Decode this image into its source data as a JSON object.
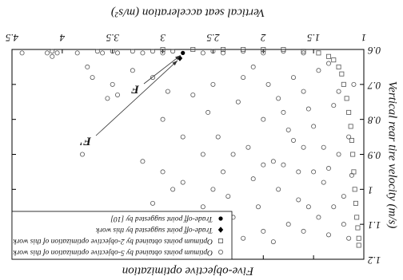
{
  "chart_data": {
    "type": "scatter",
    "title": "Five-objective optimization",
    "x_label": "Vertical seat acceleration (m/s²)",
    "y_label": "Vertical rear tire velocity (m/s)",
    "xlim": [
      1,
      4.5
    ],
    "xticks": [
      1,
      1.5,
      2,
      2.5,
      3,
      3.5,
      4,
      4.5
    ],
    "ylim": [
      0.6,
      1.2
    ],
    "yticks": [
      0.6,
      0.7,
      0.8,
      0.9,
      1,
      1.1,
      1.2
    ],
    "legend": "upper right",
    "rotated": 180,
    "series": [
      {
        "name": "Optimum points obtained by 5-objective optimization of this work",
        "marker": "circle",
        "color": "#555",
        "x": [
          4.4,
          4.15,
          4.1,
          4.05,
          3.85,
          3.65,
          3.6,
          3.5,
          3.45,
          3.3,
          3.2,
          3.1,
          3.0,
          2.9,
          2.6,
          2.5,
          2.4,
          2.2,
          2.0,
          1.8,
          1.6,
          4.1,
          3.75,
          3.7,
          3.5,
          3.45,
          3.3,
          3.1,
          3.55,
          2.95,
          3.0,
          3.8,
          3.2,
          3.0,
          2.9,
          3.1,
          2.7,
          2.8,
          2.6,
          2.55,
          2.5,
          2.45,
          2.4,
          2.35,
          2.3,
          2.25,
          2.2,
          2.15,
          2.1,
          2.05,
          2.0,
          2.0,
          1.95,
          1.9,
          1.85,
          1.8,
          1.75,
          1.7,
          1.65,
          1.6,
          1.55,
          1.5,
          1.45,
          1.4,
          1.35,
          1.3,
          1.25,
          1.2,
          1.15,
          1.1,
          1.12,
          1.3,
          1.5,
          1.7,
          1.9,
          2.2,
          2.6,
          2.1,
          1.6,
          1.4,
          1.25,
          1.8,
          2.3,
          2.7,
          1.35,
          1.55,
          1.75,
          2.0,
          1.2,
          1.45,
          1.65,
          1.85,
          2.4,
          2.8,
          1.15,
          1.35,
          1.6,
          2.5
        ],
        "y": [
          0.61,
          0.61,
          0.605,
          0.61,
          0.61,
          0.605,
          0.61,
          0.605,
          0.61,
          0.605,
          0.61,
          0.605,
          0.61,
          0.605,
          0.61,
          0.605,
          0.61,
          0.605,
          0.61,
          0.605,
          0.61,
          0.62,
          0.65,
          0.68,
          0.7,
          0.73,
          0.66,
          0.68,
          0.74,
          0.72,
          0.8,
          0.9,
          0.92,
          0.95,
          1.0,
          1.04,
          1.1,
          0.98,
          0.9,
          0.78,
          0.7,
          0.85,
          0.95,
          1.02,
          1.08,
          0.75,
          0.68,
          0.88,
          0.97,
          1.05,
          1.12,
          0.8,
          0.7,
          0.92,
          1.0,
          0.78,
          1.1,
          0.86,
          0.95,
          0.72,
          1.05,
          0.82,
          0.66,
          0.98,
          1.13,
          0.76,
          0.9,
          1.02,
          0.85,
          0.7,
          0.96,
          1.05,
          0.95,
          0.68,
          1.15,
          1.14,
          1.05,
          0.65,
          1.12,
          0.88,
          0.72,
          0.93,
          0.9,
          0.73,
          0.64,
          0.77,
          0.83,
          0.93,
          1.1,
          1.08,
          1.03,
          0.74,
          1.1,
          0.85,
          1.14,
          0.94,
          0.88,
          1.0
        ]
      },
      {
        "name": "Optimum points obtained by 2-objective optimization of this work",
        "marker": "square",
        "color": "#555",
        "x": [
          3.0,
          2.7,
          2.4,
          2.2,
          2.0,
          1.8,
          1.6,
          1.45,
          1.35,
          1.3,
          1.25,
          1.22,
          1.2,
          1.17,
          1.15,
          1.13,
          1.12,
          1.11,
          1.1,
          1.09,
          1.08,
          1.07,
          1.06,
          1.05,
          1.05
        ],
        "y": [
          0.6,
          0.6,
          0.6,
          0.6,
          0.6,
          0.6,
          0.605,
          0.61,
          0.62,
          0.63,
          0.65,
          0.67,
          0.7,
          0.74,
          0.78,
          0.82,
          0.86,
          0.9,
          0.95,
          1.0,
          1.04,
          1.08,
          1.11,
          1.14,
          1.16
        ]
      },
      {
        "name": "Trade-off point suggested by this work",
        "marker": "diamond",
        "color": "#000",
        "x": [
          2.83
        ],
        "y": [
          0.625
        ]
      },
      {
        "name": "Trade-off point suggested by [10]",
        "marker": "dot",
        "color": "#000",
        "x": [
          2.8
        ],
        "y": [
          0.61
        ]
      }
    ],
    "annotations": [
      "F",
      "F'"
    ]
  }
}
